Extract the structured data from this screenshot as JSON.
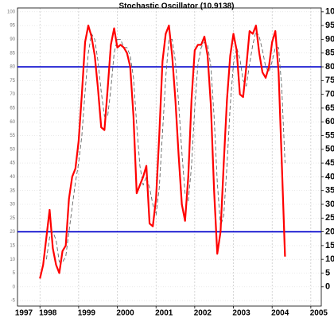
{
  "chart_data": {
    "type": "line",
    "title": "Stochastic Oscillator (10.9138)",
    "x": [
      1998,
      1998.083,
      1998.167,
      1998.25,
      1998.333,
      1998.417,
      1998.5,
      1998.583,
      1998.667,
      1998.75,
      1998.833,
      1998.917,
      1999,
      1999.083,
      1999.167,
      1999.25,
      1999.333,
      1999.417,
      1999.5,
      1999.583,
      1999.667,
      1999.75,
      1999.833,
      1999.917,
      2000,
      2000.083,
      2000.167,
      2000.25,
      2000.333,
      2000.417,
      2000.5,
      2000.583,
      2000.667,
      2000.75,
      2000.833,
      2000.917,
      2001,
      2001.083,
      2001.167,
      2001.25,
      2001.333,
      2001.417,
      2001.5,
      2001.583,
      2001.667,
      2001.75,
      2001.833,
      2001.917,
      2002,
      2002.083,
      2002.167,
      2002.25,
      2002.333,
      2002.417,
      2002.5,
      2002.583,
      2002.667,
      2002.75,
      2002.833,
      2002.917,
      2003,
      2003.083,
      2003.167,
      2003.25,
      2003.333,
      2003.417,
      2003.5,
      2003.583,
      2003.667,
      2003.75,
      2003.833,
      2003.917,
      2004,
      2004.083,
      2004.167,
      2004.25,
      2004.333
    ],
    "series": [
      {
        "color": "#ff0000",
        "values": [
          3,
          8,
          18,
          28,
          14,
          8,
          5,
          13,
          15,
          32,
          40,
          43,
          53,
          70,
          89,
          95,
          91,
          84,
          72,
          58,
          57,
          72,
          88,
          94,
          87,
          88,
          87,
          85,
          80,
          62,
          34,
          37,
          40,
          44,
          23,
          22,
          32,
          55,
          82,
          92,
          95,
          84,
          68,
          48,
          30,
          24,
          40,
          68,
          86,
          88,
          88,
          91,
          84,
          66,
          35,
          12,
          20,
          45,
          68,
          84,
          92,
          86,
          70,
          69,
          80,
          93,
          92,
          95,
          85,
          78,
          76,
          80,
          89,
          93,
          78,
          45,
          11
        ]
      },
      {
        "color": "#666666",
        "dashed": true,
        "values": [
          null,
          null,
          10,
          18,
          20,
          17,
          9,
          9,
          11,
          20,
          29,
          38,
          45,
          55,
          71,
          85,
          92,
          90,
          82,
          71,
          62,
          62,
          72,
          85,
          90,
          90,
          87,
          87,
          84,
          76,
          59,
          44,
          37,
          40,
          36,
          30,
          26,
          36,
          56,
          76,
          90,
          90,
          82,
          67,
          49,
          34,
          31,
          44,
          65,
          81,
          87,
          89,
          88,
          80,
          62,
          38,
          22,
          26,
          44,
          66,
          81,
          87,
          83,
          75,
          73,
          81,
          88,
          93,
          91,
          86,
          80,
          78,
          82,
          87,
          87,
          72,
          45
        ]
      }
    ],
    "levels": [
      20,
      80
    ],
    "level_color": "#0000cc",
    "xlim": [
      1997.42,
      2005.27
    ],
    "xticks": [
      1997,
      1998,
      1999,
      2000,
      2001,
      2002,
      2003,
      2004,
      2005
    ],
    "ylim": [
      -7,
      101.4
    ],
    "yticks": [
      -5,
      0,
      5,
      10,
      15,
      20,
      25,
      30,
      35,
      40,
      45,
      50,
      55,
      60,
      65,
      70,
      75,
      80,
      85,
      90,
      95,
      100
    ],
    "y2lim": [
      -7,
      101.4
    ],
    "y2ticks": [
      0,
      5,
      10,
      15,
      20,
      25,
      30,
      35,
      40,
      45,
      50,
      55,
      60,
      65,
      70,
      75,
      80,
      85,
      90,
      95,
      100
    ],
    "grid": true
  }
}
